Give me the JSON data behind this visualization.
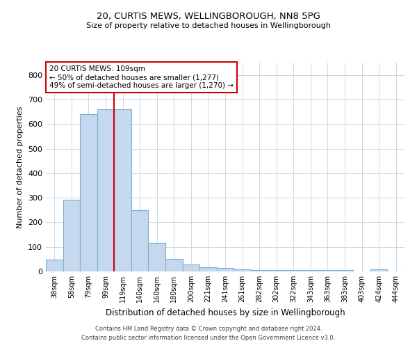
{
  "title1": "20, CURTIS MEWS, WELLINGBOROUGH, NN8 5PG",
  "title2": "Size of property relative to detached houses in Wellingborough",
  "xlabel": "Distribution of detached houses by size in Wellingborough",
  "ylabel": "Number of detached properties",
  "categories": [
    "38sqm",
    "58sqm",
    "79sqm",
    "99sqm",
    "119sqm",
    "140sqm",
    "160sqm",
    "180sqm",
    "200sqm",
    "221sqm",
    "241sqm",
    "261sqm",
    "282sqm",
    "302sqm",
    "322sqm",
    "343sqm",
    "363sqm",
    "383sqm",
    "403sqm",
    "424sqm",
    "444sqm"
  ],
  "values": [
    47,
    293,
    640,
    660,
    660,
    250,
    115,
    50,
    27,
    17,
    15,
    8,
    6,
    6,
    6,
    5,
    5,
    5,
    1,
    8,
    1
  ],
  "bar_color": "#c5d8ee",
  "bar_edge_color": "#7bafd4",
  "property_line_x": 3.5,
  "property_line_color": "#cc0000",
  "annotation_text": "20 CURTIS MEWS: 109sqm\n← 50% of detached houses are smaller (1,277)\n49% of semi-detached houses are larger (1,270) →",
  "annotation_box_color": "#ffffff",
  "annotation_box_edge": "#cc0000",
  "ylim": [
    0,
    850
  ],
  "yticks": [
    0,
    100,
    200,
    300,
    400,
    500,
    600,
    700,
    800
  ],
  "footnote": "Contains HM Land Registry data © Crown copyright and database right 2024.\nContains public sector information licensed under the Open Government Licence v3.0.",
  "bg_color": "#ffffff",
  "grid_color": "#c8d8e8"
}
